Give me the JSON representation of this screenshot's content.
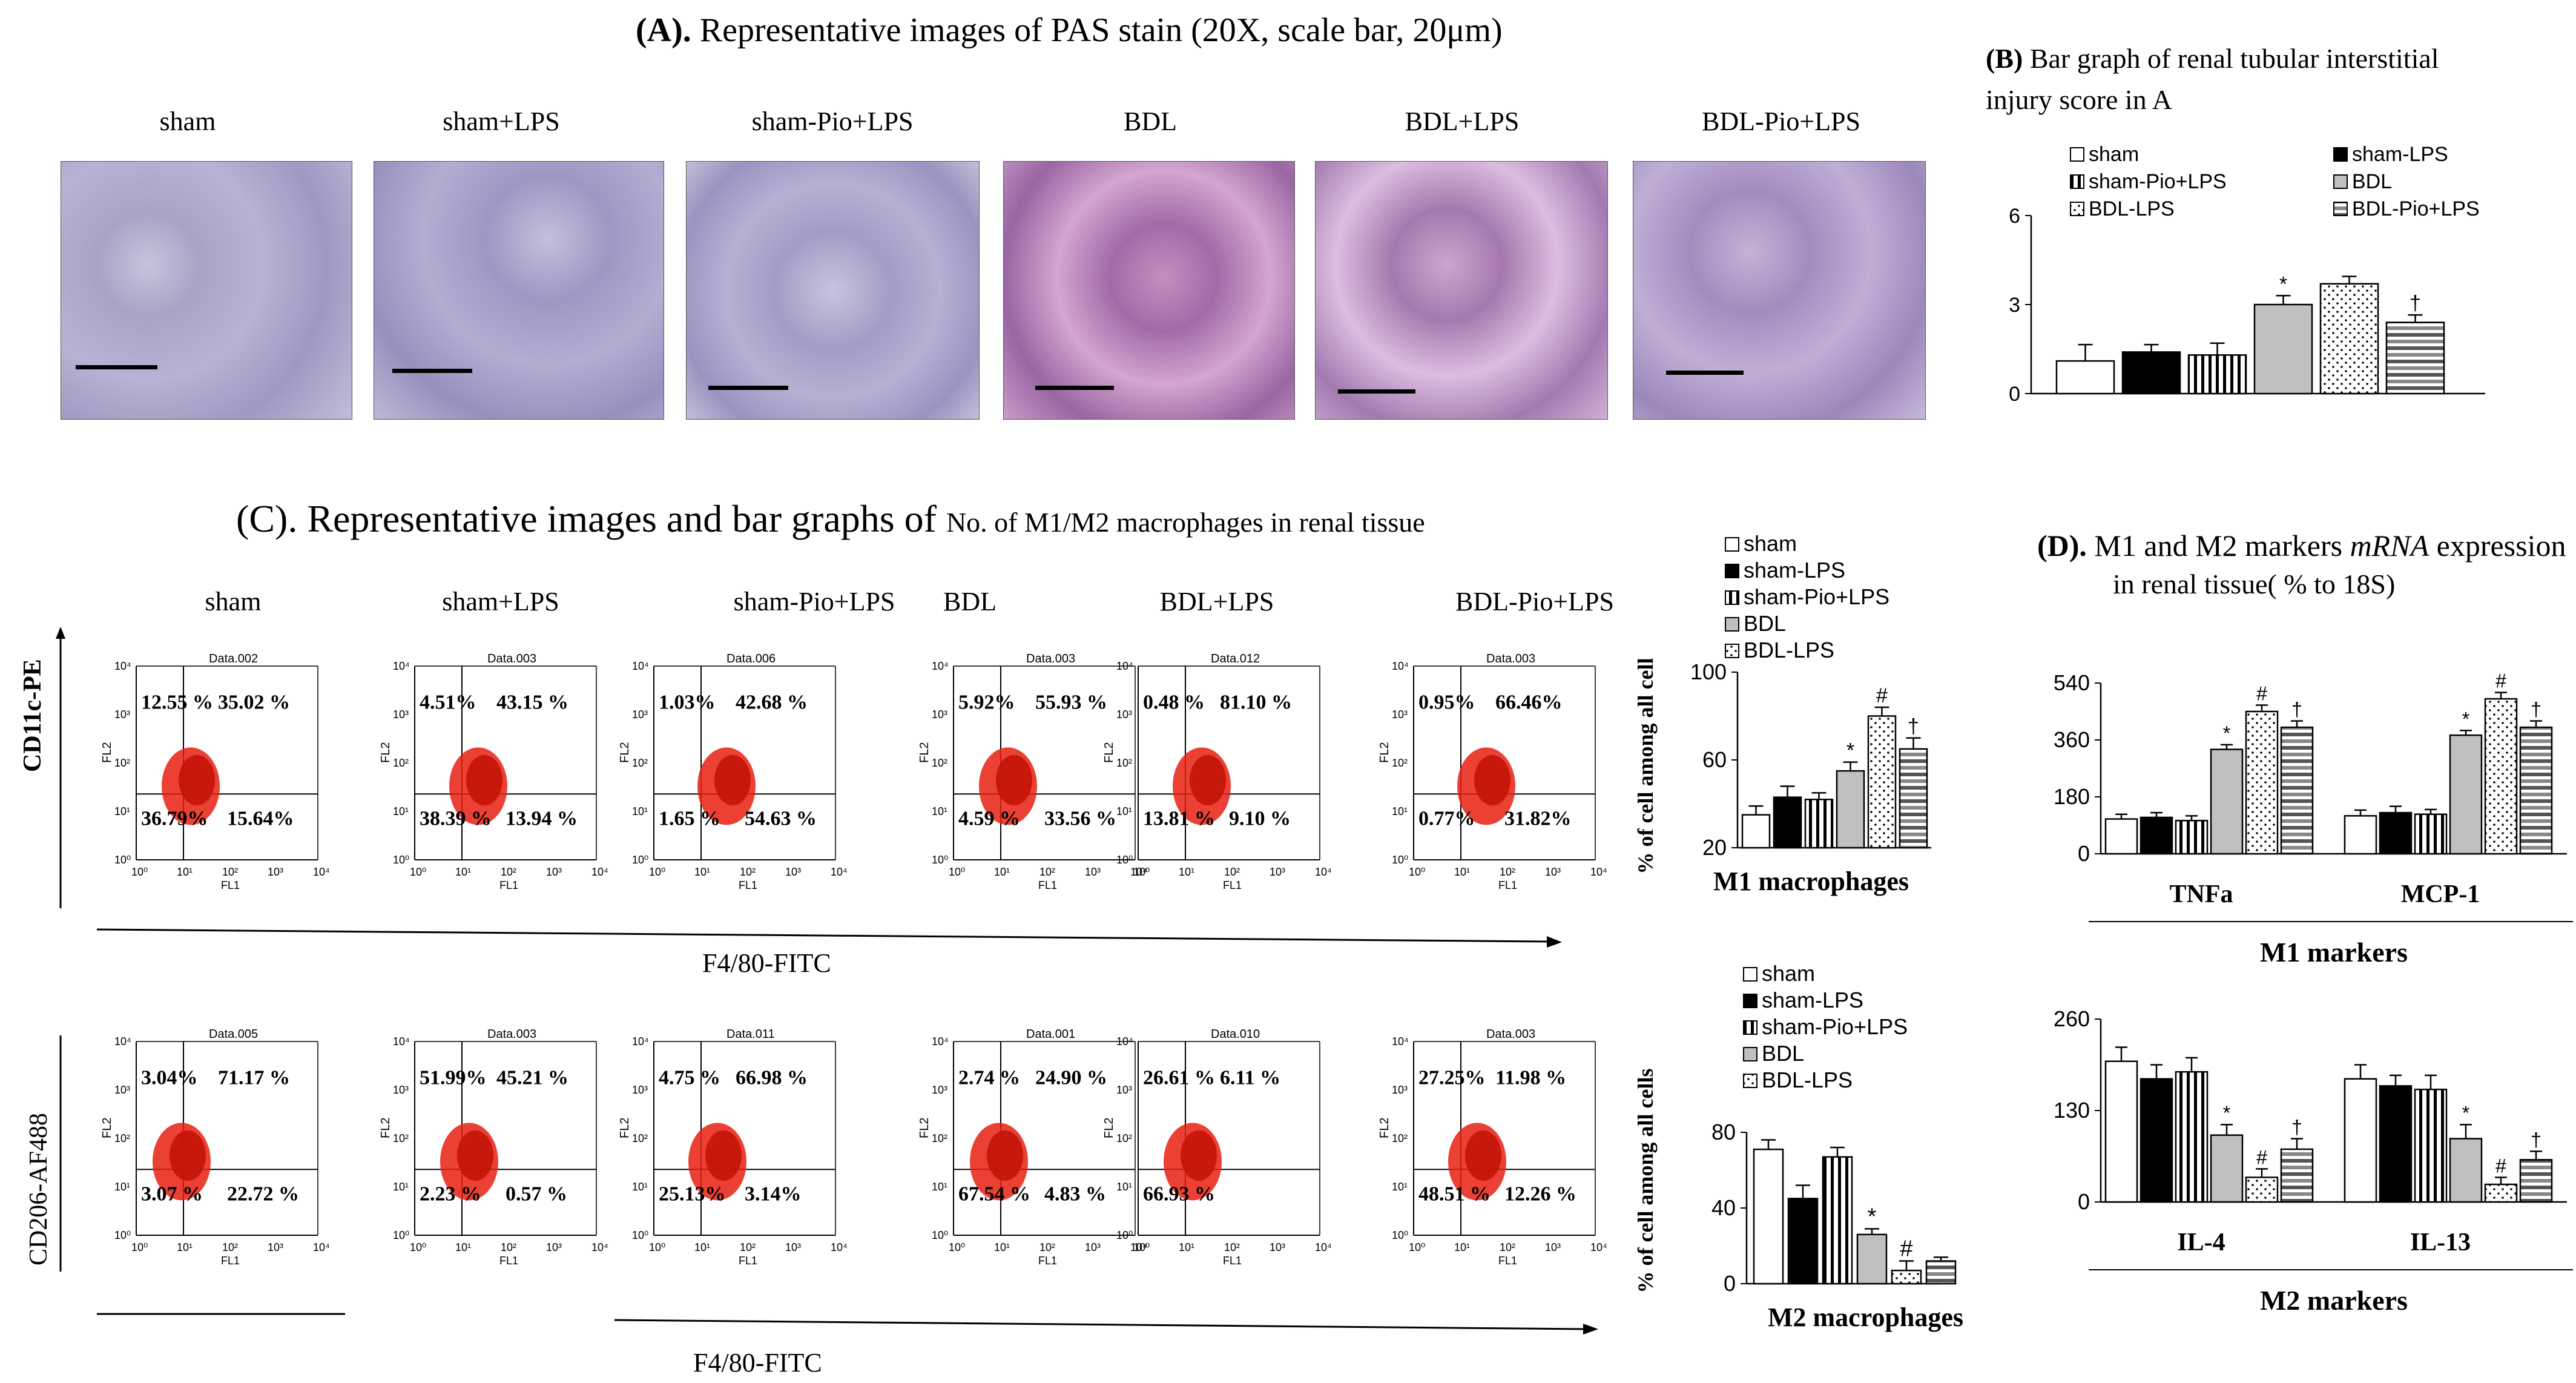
{
  "panelA": {
    "title_letter": "(A).",
    "title_text": "Representative images of PAS stain (20X, scale bar, 20μm)",
    "groups": [
      "sham",
      "sham+LPS",
      "sham-Pio+LPS",
      "BDL",
      "BDL+LPS",
      "BDL-Pio+LPS"
    ]
  },
  "panelB": {
    "title_letter": "(B)",
    "title_line1": "Bar graph of renal tubular interstitial",
    "title_line2": "injury score in A",
    "legend": [
      "sham",
      "sham-LPS",
      "sham-Pio+LPS",
      "BDL",
      "BDL-LPS",
      "BDL-Pio+LPS"
    ]
  },
  "panelC": {
    "title_letter": "(C).",
    "title_text1": "Representative images and bar graphs of",
    "title_text2": "No. of M1/M2 macrophages in renal tissue",
    "groups": [
      "sham",
      "sham+LPS",
      "sham-Pio+LPS",
      "BDL",
      "BDL+LPS",
      "BDL-Pio+LPS"
    ],
    "y_top": "CD11c-PE",
    "y_bottom": "CD206-AF488",
    "x_label": "F4/80-FITC",
    "fl1": "FL1",
    "fl2": "FL2",
    "top_plots": [
      {
        "file": "Data.002",
        "q": [
          "12.55 %",
          "35.02 %",
          "36.79%",
          "15.64%"
        ]
      },
      {
        "file": "Data.003",
        "q": [
          "4.51%",
          "43.15 %",
          "38.39 %",
          "13.94 %"
        ]
      },
      {
        "file": "Data.006",
        "q": [
          "1.03%",
          "42.68 %",
          "1.65 %",
          "54.63 %"
        ]
      },
      {
        "file": "Data.003",
        "q": [
          "5.92%",
          "55.93 %",
          "4.59 %",
          "33.56 %"
        ]
      },
      {
        "file": "Data.012",
        "q": [
          "0.48 %",
          "81.10 %",
          "13.81 %",
          "9.10 %"
        ]
      },
      {
        "file": "Data.003",
        "q": [
          "0.95%",
          "66.46%",
          "0.77%",
          "31.82%"
        ]
      }
    ],
    "bottom_plots": [
      {
        "file": "Data.005",
        "q": [
          "3.04%",
          "71.17 %",
          "3.07 %",
          "22.72 %"
        ]
      },
      {
        "file": "Data.003",
        "q": [
          "51.99%",
          "45.21 %",
          "2.23 %",
          "0.57 %"
        ]
      },
      {
        "file": "Data.011",
        "q": [
          "4.75 %",
          "66.98 %",
          "25.13%",
          "3.14%"
        ]
      },
      {
        "file": "Data.001",
        "q": [
          "2.74 %",
          "24.90 %",
          "67.54 %",
          "4.83 %"
        ]
      },
      {
        "file": "Data.010",
        "q": [
          "26.61 %",
          "6.11 %",
          "66.93 %",
          ""
        ]
      },
      {
        "file": "Data.003",
        "q": [
          "27.25%",
          "11.98 %",
          "48.51 %",
          "12.26 %"
        ]
      }
    ],
    "m1_legend": [
      "sham",
      "sham-LPS",
      "sham-Pio+LPS",
      "BDL",
      "BDL-LPS"
    ],
    "m1_ylabel": "% of cell among all cell",
    "m1_xlabel": "M1 macrophages",
    "m2_legend": [
      "sham",
      "sham-LPS",
      "sham-Pio+LPS",
      "BDL",
      "BDL-LPS"
    ],
    "m2_ylabel": "% of cell among all cells",
    "m2_xlabel": "M2 macrophages"
  },
  "panelD": {
    "title_letter": "(D).",
    "title_line1a": "M1 and M2 markers",
    "title_line1b": "mRNA",
    "title_line1c": "expression",
    "title_line2": "in renal tissue( % to 18S)",
    "m1_label": "M1 markers",
    "m2_label": "M2 markers"
  },
  "chart_data": [
    {
      "type": "bar",
      "title": "Bar graph of renal tubular interstitial injury score in A",
      "categories": [
        "sham",
        "sham-LPS",
        "sham-Pio+LPS",
        "BDL",
        "BDL-LPS",
        "BDL-Pio+LPS"
      ],
      "values": [
        1.1,
        1.4,
        1.3,
        3.0,
        3.7,
        2.4
      ],
      "errors": [
        0.55,
        0.25,
        0.4,
        0.3,
        0.25,
        0.25
      ],
      "marks": [
        "",
        "",
        "",
        "*",
        "",
        "†"
      ],
      "ylim": [
        0,
        6
      ],
      "yticks": [
        "0",
        "3",
        "6"
      ]
    },
    {
      "type": "bar",
      "xlabel": "M1 macrophages",
      "ylabel": "% of cell among all cell",
      "categories": [
        "sham",
        "sham-LPS",
        "sham-Pio+LPS",
        "BDL",
        "BDL-LPS",
        "BDL-Pio+LPS"
      ],
      "values": [
        35,
        43,
        42,
        55,
        80,
        65
      ],
      "errors": [
        4,
        5,
        3,
        4,
        4,
        5
      ],
      "marks": [
        "",
        "",
        "",
        "*",
        "#",
        "†"
      ],
      "ylim": [
        20,
        100
      ],
      "yticks": [
        "20",
        "60",
        "100"
      ]
    },
    {
      "type": "bar",
      "xlabel": "M2 macrophages",
      "ylabel": "% of cell among all cells",
      "categories": [
        "sham",
        "sham-LPS",
        "sham-Pio+LPS",
        "BDL",
        "BDL-LPS",
        "BDL-Pio+LPS"
      ],
      "values": [
        71,
        45,
        67,
        26,
        7,
        12
      ],
      "errors": [
        5,
        7,
        5,
        3,
        5,
        2
      ],
      "marks": [
        "",
        "",
        "",
        "*",
        "#",
        ""
      ],
      "ylim": [
        0,
        80
      ],
      "yticks": [
        "0",
        "40",
        "80"
      ]
    },
    {
      "type": "bar",
      "xlabel": "M1 markers",
      "categories": [
        "TNFa",
        "MCP-1"
      ],
      "series": [
        {
          "values": [
            110,
            120
          ],
          "errors": [
            15,
            18
          ]
        },
        {
          "values": [
            115,
            130
          ],
          "errors": [
            15,
            20
          ]
        },
        {
          "values": [
            105,
            125
          ],
          "errors": [
            15,
            15
          ]
        },
        {
          "values": [
            330,
            375
          ],
          "errors": [
            15,
            15
          ]
        },
        {
          "values": [
            450,
            490
          ],
          "errors": [
            20,
            20
          ]
        },
        {
          "values": [
            400,
            400
          ],
          "errors": [
            20,
            20
          ]
        }
      ],
      "marks": [
        "",
        "",
        "",
        "*",
        "#",
        "†"
      ],
      "ylim": [
        0,
        540
      ],
      "yticks": [
        "0",
        "180",
        "360",
        "540"
      ]
    },
    {
      "type": "bar",
      "xlabel": "M2 markers",
      "categories": [
        "IL-4",
        "IL-13"
      ],
      "series": [
        {
          "values": [
            200,
            175
          ],
          "errors": [
            20,
            20
          ]
        },
        {
          "values": [
            175,
            165
          ],
          "errors": [
            20,
            15
          ]
        },
        {
          "values": [
            185,
            160
          ],
          "errors": [
            20,
            20
          ]
        },
        {
          "values": [
            95,
            90
          ],
          "errors": [
            15,
            20
          ]
        },
        {
          "values": [
            35,
            25
          ],
          "errors": [
            12,
            10
          ]
        },
        {
          "values": [
            75,
            60
          ],
          "errors": [
            15,
            12
          ]
        }
      ],
      "marks": [
        "",
        "",
        "",
        "*",
        "#",
        "†"
      ],
      "ylim": [
        0,
        260
      ],
      "yticks": [
        "0",
        "130",
        "260"
      ]
    }
  ]
}
